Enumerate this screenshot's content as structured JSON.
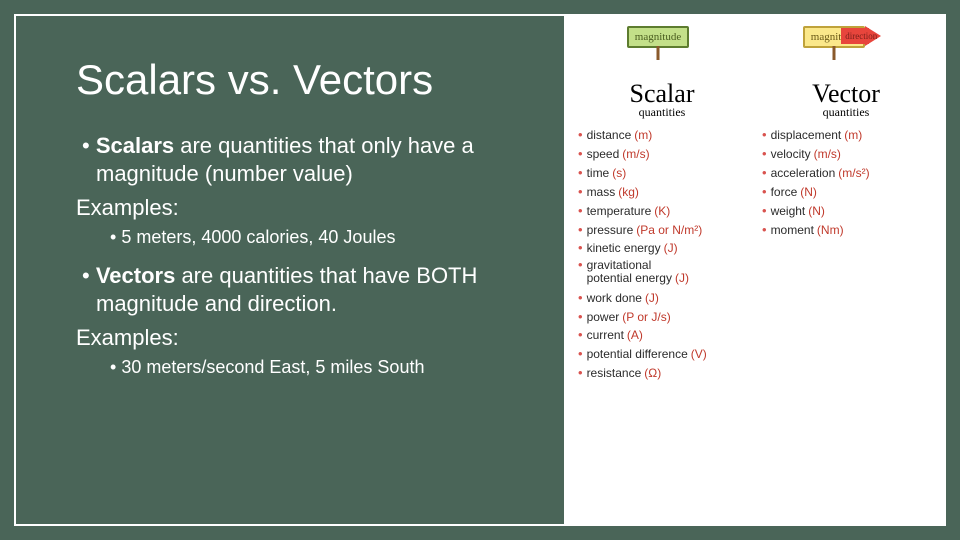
{
  "colors": {
    "background": "#4a6558",
    "border": "#ffffff",
    "text": "#ffffff",
    "image_bg": "#ffffff",
    "sign_green_bg": "#c3e089",
    "sign_green_border": "#5d7c2f",
    "sign_yellow_bg": "#fbe88a",
    "sign_yellow_border": "#bfa23a",
    "arrow_red": "#e8453c",
    "bullet_red": "#d9534f",
    "unit_red": "#c0392b",
    "body_text": "#2b2b2b"
  },
  "title": "Scalars vs. Vectors",
  "scalar_def": {
    "bold": "Scalars",
    "rest": " are quantities that only have a magnitude (number value)"
  },
  "examples_label": "Examples:",
  "scalar_examples": "5 meters, 4000 calories, 40 Joules",
  "vector_def": {
    "bold": "Vectors",
    "rest": " are quantities that have BOTH magnitude and direction."
  },
  "vector_examples": "30 meters/second East, 5 miles South",
  "diagram": {
    "sign_magnitude": "magnitude",
    "sign_direction": "direction",
    "scalar_head": "Scalar",
    "vector_head": "Vector",
    "quantities_label": "quantities",
    "scalar_list": [
      {
        "name": "distance",
        "unit": "(m)"
      },
      {
        "name": "speed",
        "unit": "(m/s)"
      },
      {
        "name": "time",
        "unit": "(s)"
      },
      {
        "name": "mass",
        "unit": "(kg)"
      },
      {
        "name": "temperature",
        "unit": "(K)"
      },
      {
        "name": "pressure",
        "unit": "(Pa or N/m²)"
      },
      {
        "name": "kinetic energy",
        "unit": "(J)"
      },
      {
        "name": "gravitational potential energy",
        "unit": "(J)",
        "multiline": true
      },
      {
        "name": "work done",
        "unit": "(J)"
      },
      {
        "name": "power",
        "unit": "(P or J/s)"
      },
      {
        "name": "current",
        "unit": "(A)"
      },
      {
        "name": "potential difference",
        "unit": "(V)"
      },
      {
        "name": "resistance",
        "unit": "(Ω)"
      }
    ],
    "vector_list": [
      {
        "name": "displacement",
        "unit": "(m)"
      },
      {
        "name": "velocity",
        "unit": "(m/s)"
      },
      {
        "name": "acceleration",
        "unit": "(m/s²)"
      },
      {
        "name": "force",
        "unit": "(N)"
      },
      {
        "name": "weight",
        "unit": "(N)"
      },
      {
        "name": "moment",
        "unit": "(Nm)"
      }
    ]
  }
}
